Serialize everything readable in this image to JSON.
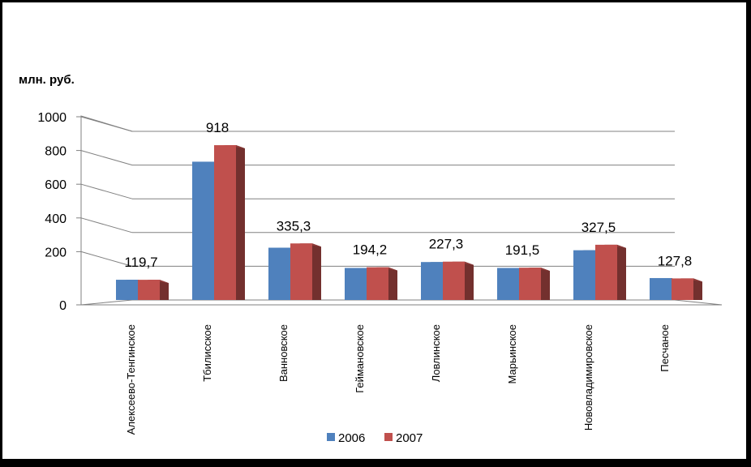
{
  "chart_data": {
    "type": "bar",
    "ylabel": "млн. руб.",
    "ylim": [
      0,
      1000
    ],
    "yticks": [
      0,
      200,
      400,
      600,
      800,
      1000
    ],
    "grid": true,
    "legend_position": "bottom",
    "categories": [
      "Алексеево-Тенгинское",
      "Тбилисское",
      "Ванновское",
      "Геймановское",
      "Ловлинское",
      "Марьинское",
      "Нововладимировское",
      "Песчаное"
    ],
    "series": [
      {
        "name": "2006",
        "color": "#4F81BD",
        "values": [
          120,
          820,
          310,
          190,
          225,
          190,
          295,
          130
        ]
      },
      {
        "name": "2007",
        "color": "#C0504D",
        "values": [
          119.7,
          918,
          335.3,
          194.2,
          227.3,
          191.5,
          327.5,
          127.8
        ]
      }
    ],
    "data_labels": [
      "119,7",
      "918",
      "335,3",
      "194,2",
      "227,3",
      "191,5",
      "327,5",
      "127,8"
    ],
    "colors": {
      "background": "#FFFFFF",
      "frame": "#000000",
      "grid": "#808080"
    }
  }
}
